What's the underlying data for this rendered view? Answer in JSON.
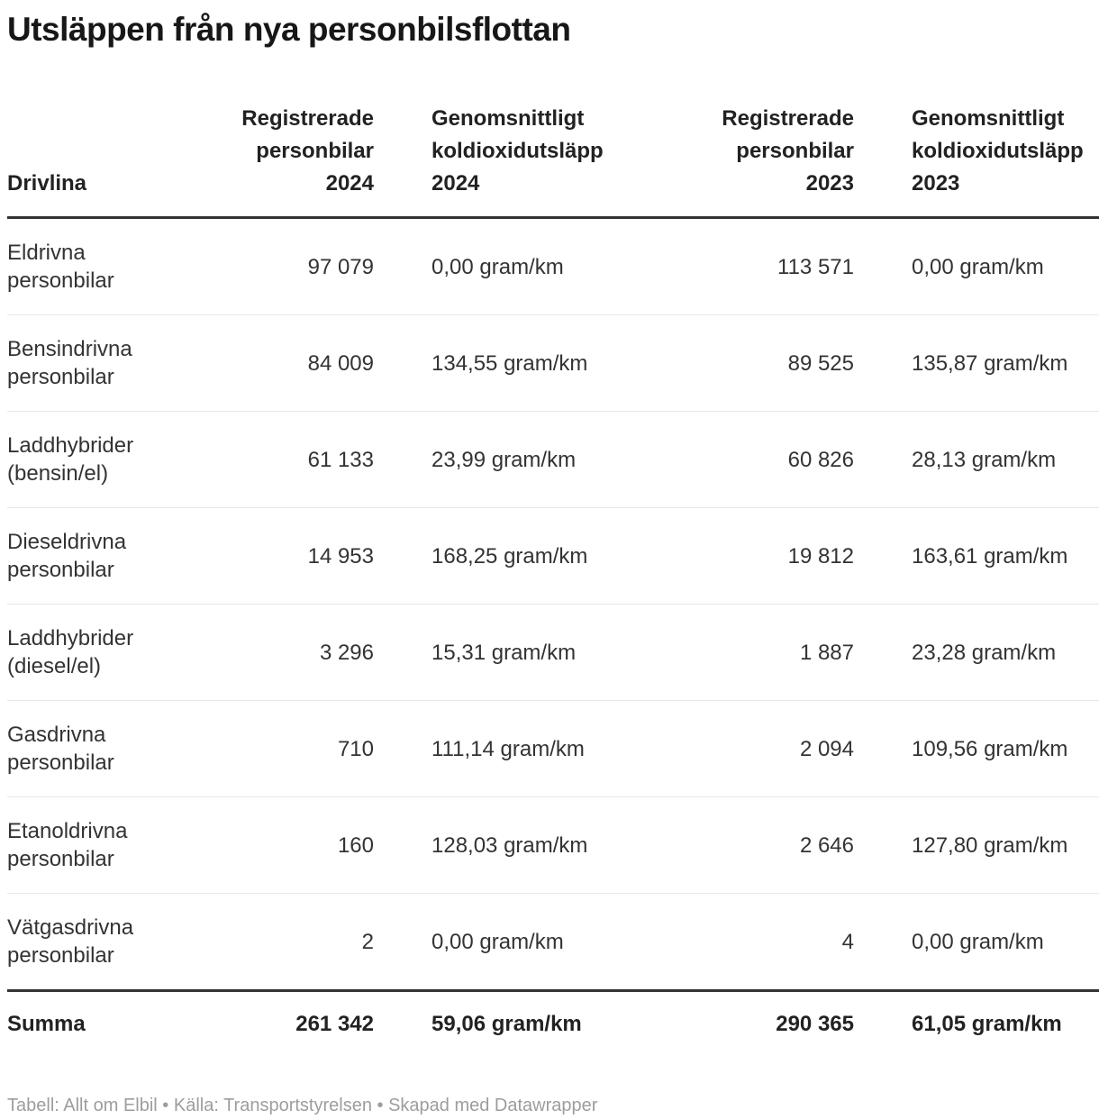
{
  "title": "Utsläppen från nya personbilsflottan",
  "table": {
    "header": {
      "drivlina": "Drivlina",
      "reg_2024": "Registrerade\npersonbilar\n2024",
      "co2_2024": "Genomsnittligt\nkoldioxidutsläpp\n2024",
      "reg_2023": "Registrerade\npersonbilar\n2023",
      "co2_2023": "Genomsnittligt\nkoldioxidutsläpp\n2023"
    },
    "rows": [
      {
        "name": "Eldrivna personbilar",
        "reg_2024": "97 079",
        "co2_2024": "0,00 gram/km",
        "reg_2023": "113 571",
        "co2_2023": "0,00 gram/km"
      },
      {
        "name": "Bensindrivna personbilar",
        "reg_2024": "84 009",
        "co2_2024": "134,55 gram/km",
        "reg_2023": "89 525",
        "co2_2023": "135,87 gram/km"
      },
      {
        "name": "Laddhybrider (bensin/el)",
        "reg_2024": "61 133",
        "co2_2024": "23,99 gram/km",
        "reg_2023": "60 826",
        "co2_2023": "28,13 gram/km"
      },
      {
        "name": "Dieseldrivna personbilar",
        "reg_2024": "14 953",
        "co2_2024": "168,25 gram/km",
        "reg_2023": "19 812",
        "co2_2023": "163,61 gram/km"
      },
      {
        "name": "Laddhybrider (diesel/el)",
        "reg_2024": "3 296",
        "co2_2024": "15,31 gram/km",
        "reg_2023": "1 887",
        "co2_2023": "23,28 gram/km"
      },
      {
        "name": "Gasdrivna personbilar",
        "reg_2024": "710",
        "co2_2024": "111,14 gram/km",
        "reg_2023": "2 094",
        "co2_2023": "109,56 gram/km"
      },
      {
        "name": "Etanoldrivna personbilar",
        "reg_2024": "160",
        "co2_2024": "128,03 gram/km",
        "reg_2023": "2 646",
        "co2_2023": "127,80 gram/km"
      },
      {
        "name": "Vätgasdrivna personbilar",
        "reg_2024": "2",
        "co2_2024": "0,00 gram/km",
        "reg_2023": "4",
        "co2_2023": "0,00 gram/km"
      }
    ],
    "summary": {
      "label": "Summa",
      "reg_2024": "261 342",
      "co2_2024": "59,06 gram/km",
      "reg_2023": "290 365",
      "co2_2023": "61,05 gram/km"
    }
  },
  "footer": {
    "text": "Tabell: Allt om Elbil • Källa: Transportstyrelsen • Skapad med Datawrapper"
  },
  "colors": {
    "title_text": "#171717",
    "body_text": "#333333",
    "rule_dark": "#333333",
    "rule_light": "#e8e8e8",
    "footer_text": "#9d9d9d"
  },
  "chart_data": {
    "type": "table",
    "title": "Utsläppen från nya personbilsflottan",
    "columns": [
      "Drivlina",
      "Registrerade personbilar 2024",
      "Genomsnittligt koldioxidutsläpp 2024 (gram/km)",
      "Registrerade personbilar 2023",
      "Genomsnittligt koldioxidutsläpp 2023 (gram/km)"
    ],
    "rows": [
      [
        "Eldrivna personbilar",
        97079,
        0.0,
        113571,
        0.0
      ],
      [
        "Bensindrivna personbilar",
        84009,
        134.55,
        89525,
        135.87
      ],
      [
        "Laddhybrider (bensin/el)",
        61133,
        23.99,
        60826,
        28.13
      ],
      [
        "Dieseldrivna personbilar",
        14953,
        168.25,
        19812,
        163.61
      ],
      [
        "Laddhybrider (diesel/el)",
        3296,
        15.31,
        1887,
        23.28
      ],
      [
        "Gasdrivna personbilar",
        710,
        111.14,
        2094,
        109.56
      ],
      [
        "Etanoldrivna personbilar",
        160,
        128.03,
        2646,
        127.8
      ],
      [
        "Vätgasdrivna personbilar",
        2,
        0.0,
        4,
        0.0
      ]
    ],
    "summary_row": [
      "Summa",
      261342,
      59.06,
      290365,
      61.05
    ],
    "source": "Tabell: Allt om Elbil • Källa: Transportstyrelsen • Skapad med Datawrapper"
  }
}
